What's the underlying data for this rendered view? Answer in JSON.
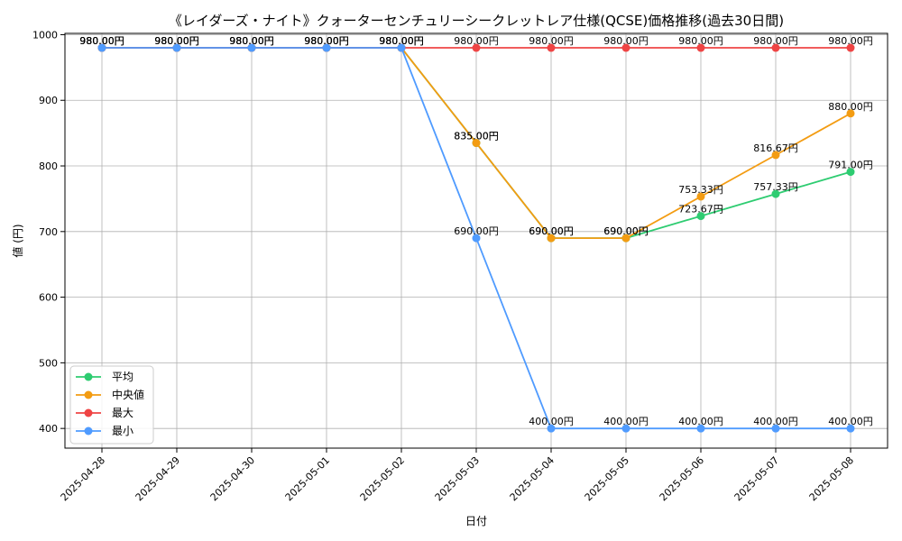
{
  "chart_data": {
    "type": "line",
    "title": "《レイダーズ・ナイト》クォーターセンチュリーシークレットレア仕様(QCSE)価格推移(過去30日間)",
    "xlabel": "日付",
    "ylabel": "値 (円)",
    "categories": [
      "2025-04-28",
      "2025-04-29",
      "2025-04-30",
      "2025-05-01",
      "2025-05-02",
      "2025-05-03",
      "2025-05-04",
      "2025-05-05",
      "2025-05-06",
      "2025-05-07",
      "2025-05-08"
    ],
    "ylim": [
      370,
      1002
    ],
    "yticks": [
      400,
      500,
      600,
      700,
      800,
      900,
      1000
    ],
    "grid": true,
    "legend_position": "lower-left",
    "series": [
      {
        "name": "平均",
        "color": "#2ecc71",
        "values": [
          980,
          980,
          980,
          980,
          980,
          835,
          690,
          690,
          723.67,
          757.33,
          791
        ],
        "labels": [
          "980.00円",
          "980.00円",
          "980.00円",
          "980.00円",
          "980.00円",
          "835.00円",
          "690.00円",
          "690.00円",
          "723.67円",
          "757.33円",
          "791.00円"
        ]
      },
      {
        "name": "中央値",
        "color": "#f39c12",
        "values": [
          980,
          980,
          980,
          980,
          980,
          835,
          690,
          690,
          753.33,
          816.67,
          880
        ],
        "labels": [
          "980.00円",
          "980.00円",
          "980.00円",
          "980.00円",
          "980.00円",
          "835.00円",
          "690.00円",
          "690.00円",
          "753.33円",
          "816.67円",
          "880.00円"
        ]
      },
      {
        "name": "最大",
        "color": "#ef4444",
        "values": [
          980,
          980,
          980,
          980,
          980,
          980,
          980,
          980,
          980,
          980,
          980
        ],
        "labels": [
          "980.00円",
          "980.00円",
          "980.00円",
          "980.00円",
          "980.00円",
          "980.00円",
          "980.00円",
          "980.00円",
          "980.00円",
          "980.00円",
          "980.00円"
        ]
      },
      {
        "name": "最小",
        "color": "#4f9bff",
        "values": [
          980,
          980,
          980,
          980,
          980,
          690,
          400,
          400,
          400,
          400,
          400
        ],
        "labels": [
          "980.00円",
          "980.00円",
          "980.00円",
          "980.00円",
          "980.00円",
          "690.00円",
          "400.00円",
          "400.00円",
          "400.00円",
          "400.00円",
          "400.00円"
        ]
      }
    ]
  }
}
